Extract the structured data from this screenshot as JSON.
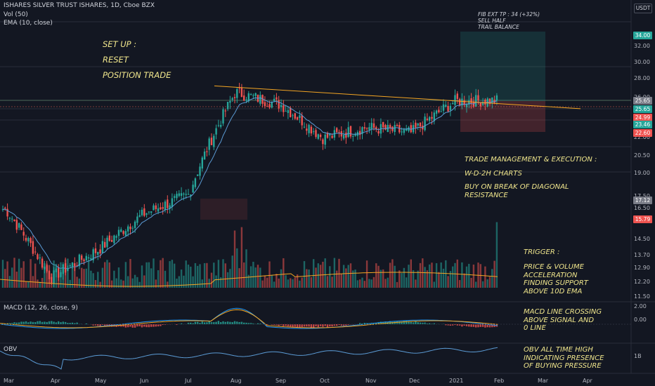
{
  "header": {
    "symbol_line": "ISHARES SILVER TRUST ISHARES, 1D, Cboe BZX",
    "vol_line": "Vol (50)",
    "ema_line": "EMA (10, close)",
    "macd_line": "MACD (12, 26, close, 9)",
    "obv_line": "OBV",
    "currency_badge": "USDT"
  },
  "notes": {
    "setup": "SET UP :",
    "reset": "RESET",
    "position": "POSITION TRADE",
    "fib": "FIB EXT TP : 34 (+32%)\nSELL HALF\nTRAIL BALANCE",
    "trade_mgmt": "TRADE MANAGEMENT & EXECUTION :",
    "charts": "W-D-2H CHARTS",
    "buy": "BUY ON BREAK OF DIAGONAL\nRESISTANCE",
    "trigger": "TRIGGER :",
    "trigger_body": "PRICE & VOLUME\nACCELERATION\nFINDING SUPPORT\nABOVE 10D EMA",
    "macd_note": "MACD LINE CROSSING\nABOVE SIGNAL AND\n0 LINE",
    "obv_note": "OBV ALL TIME HIGH\nINDICATING PRESENCE\nOF BUYING PRESSURE"
  },
  "price_axis": {
    "ticks": [
      "32.00",
      "30.00",
      "28.00",
      "26.00",
      "22.00",
      "20.50",
      "19.00",
      "17.50",
      "16.50",
      "15.50",
      "14.50",
      "13.70",
      "12.90",
      "12.20",
      "11.50"
    ],
    "labels": [
      {
        "text": "34.00",
        "color": "#26a69a"
      },
      {
        "text": "25.65",
        "color": "#787b86"
      },
      {
        "text": "25.65",
        "color": "#26a69a"
      },
      {
        "text": "24.99",
        "color": "#ef5350"
      },
      {
        "text": "23.46",
        "color": "#26a69a"
      },
      {
        "text": "22.60",
        "color": "#ef5350"
      },
      {
        "text": "17.12",
        "color": "#787b86"
      },
      {
        "text": "15.79",
        "color": "#ef5350"
      }
    ]
  },
  "macd_axis": {
    "ticks": [
      "2.00",
      "0.00"
    ]
  },
  "obv_axis": {
    "ticks": [
      "1B"
    ]
  },
  "time_axis": {
    "labels": [
      "Mar",
      "Apr",
      "May",
      "Jun",
      "Jul",
      "Aug",
      "Sep",
      "Oct",
      "Nov",
      "Dec",
      "2021",
      "Feb",
      "Mar",
      "Apr"
    ]
  },
  "colors": {
    "up": "#26a69a",
    "down": "#ef5350",
    "ema": "#5b9bd5",
    "trendline": "#f5a623",
    "note": "#f0e68c",
    "background": "#131722"
  },
  "chart_data": {
    "type": "candlestick",
    "title": "ISHARES SILVER TRUST ISHARES, 1D, Cboe BZX",
    "scale": "log",
    "ylim": [
      11.5,
      34
    ],
    "x": [
      "Mar",
      "Apr",
      "May",
      "Jun",
      "Jul",
      "Aug",
      "Sep",
      "Oct",
      "Nov",
      "Dec",
      "2021",
      "Feb"
    ],
    "close_anchors": [
      16.5,
      12.5,
      14.0,
      16.2,
      17.5,
      26.5,
      25.2,
      22.0,
      23.0,
      22.5,
      25.6,
      25.65
    ],
    "last_price": 25.65,
    "horizontal_levels": [
      25.65,
      24.99,
      23.46,
      22.6,
      17.12,
      15.79
    ],
    "take_profit": 34.0,
    "indicators": [
      "Vol (50)",
      "EMA (10, close)",
      "MACD (12, 26, close, 9)",
      "OBV"
    ]
  }
}
